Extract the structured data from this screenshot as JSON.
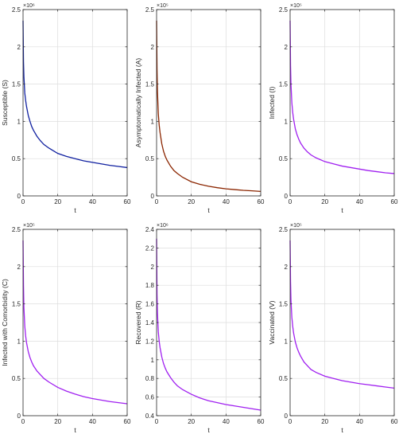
{
  "figure": {
    "colors": {
      "axis": "#262626",
      "grid": "#dedede",
      "background": "#ffffff"
    }
  },
  "chart_data": [
    {
      "type": "line",
      "xlabel": "t",
      "ylabel": "Susceptible (S)",
      "xlim": [
        0,
        60
      ],
      "ylim": [
        0,
        2.5
      ],
      "xticks": [
        "0",
        "20",
        "40",
        "60"
      ],
      "yticks": [
        "0",
        "0.5",
        "1",
        "1.5",
        "2",
        "2.5"
      ],
      "y_multiplier": "×10⁶",
      "grid": true,
      "series": [
        {
          "color": "#1020a0",
          "x": [
            0,
            0.25,
            0.5,
            1,
            1.5,
            2,
            3,
            4,
            5,
            6,
            8,
            10,
            12,
            15,
            20,
            25,
            30,
            35,
            40,
            45,
            50,
            55,
            60
          ],
          "y": [
            2.35,
            1.8,
            1.6,
            1.38,
            1.28,
            1.2,
            1.08,
            1.0,
            0.93,
            0.88,
            0.8,
            0.74,
            0.69,
            0.64,
            0.57,
            0.53,
            0.5,
            0.47,
            0.45,
            0.43,
            0.41,
            0.395,
            0.38
          ]
        }
      ]
    },
    {
      "type": "line",
      "xlabel": "t",
      "ylabel": "Asymptomatically Infected (A)",
      "xlim": [
        0,
        60
      ],
      "ylim": [
        0,
        2.5
      ],
      "xticks": [
        "0",
        "20",
        "40",
        "60"
      ],
      "yticks": [
        "0",
        "0.5",
        "1",
        "1.5",
        "2",
        "2.5"
      ],
      "y_multiplier": "×10⁵",
      "grid": true,
      "series": [
        {
          "color": "#8b2500",
          "x": [
            0,
            0.25,
            0.5,
            1,
            1.5,
            2,
            3,
            4,
            5,
            6,
            8,
            10,
            12,
            15,
            20,
            25,
            30,
            35,
            40,
            45,
            50,
            55,
            60
          ],
          "y": [
            2.35,
            1.7,
            1.4,
            1.1,
            0.95,
            0.85,
            0.7,
            0.6,
            0.53,
            0.48,
            0.4,
            0.34,
            0.3,
            0.25,
            0.19,
            0.155,
            0.13,
            0.11,
            0.095,
            0.085,
            0.075,
            0.068,
            0.06
          ]
        }
      ]
    },
    {
      "type": "line",
      "xlabel": "t",
      "ylabel": "Infected (I)",
      "xlim": [
        0,
        60
      ],
      "ylim": [
        0,
        2.5
      ],
      "xticks": [
        "0",
        "20",
        "40",
        "60"
      ],
      "yticks": [
        "0",
        "0.5",
        "1",
        "1.5",
        "2",
        "2.5"
      ],
      "y_multiplier": "×10⁵",
      "grid": true,
      "series": [
        {
          "color": "#a020f0",
          "x": [
            0,
            0.25,
            0.5,
            1,
            1.5,
            2,
            3,
            4,
            5,
            6,
            8,
            10,
            12,
            15,
            20,
            25,
            30,
            35,
            40,
            45,
            50,
            55,
            60
          ],
          "y": [
            2.35,
            1.75,
            1.5,
            1.25,
            1.12,
            1.03,
            0.9,
            0.82,
            0.76,
            0.71,
            0.64,
            0.59,
            0.55,
            0.51,
            0.46,
            0.43,
            0.4,
            0.38,
            0.36,
            0.34,
            0.325,
            0.31,
            0.3
          ]
        }
      ]
    },
    {
      "type": "line",
      "xlabel": "t",
      "ylabel": "Infected with Comorbidity (C)",
      "xlim": [
        0,
        60
      ],
      "ylim": [
        0,
        2.5
      ],
      "xticks": [
        "0",
        "20",
        "40",
        "60"
      ],
      "yticks": [
        "0",
        "0.5",
        "1",
        "1.5",
        "2",
        "2.5"
      ],
      "y_multiplier": "×10⁵",
      "grid": true,
      "series": [
        {
          "color": "#a020f0",
          "x": [
            0,
            0.25,
            0.5,
            1,
            1.5,
            2,
            3,
            4,
            5,
            6,
            8,
            10,
            12,
            15,
            20,
            25,
            30,
            35,
            40,
            45,
            50,
            55,
            60
          ],
          "y": [
            2.35,
            1.75,
            1.45,
            1.2,
            1.07,
            0.98,
            0.86,
            0.78,
            0.72,
            0.67,
            0.6,
            0.55,
            0.5,
            0.45,
            0.38,
            0.33,
            0.29,
            0.255,
            0.23,
            0.21,
            0.19,
            0.175,
            0.16
          ]
        }
      ]
    },
    {
      "type": "line",
      "xlabel": "t",
      "ylabel": "Recovered (R)",
      "xlim": [
        0,
        60
      ],
      "ylim": [
        0.4,
        2.4
      ],
      "xticks": [
        "0",
        "20",
        "40",
        "60"
      ],
      "yticks": [
        "0.4",
        "0.6",
        "0.8",
        "1",
        "1.2",
        "1.4",
        "1.6",
        "1.8",
        "2",
        "2.2",
        "2.4"
      ],
      "y_multiplier": "×10⁶",
      "grid": true,
      "series": [
        {
          "color": "#a020f0",
          "x": [
            0,
            0.25,
            0.5,
            1,
            1.5,
            2,
            3,
            4,
            5,
            6,
            8,
            10,
            12,
            15,
            20,
            25,
            30,
            35,
            40,
            45,
            50,
            55,
            60
          ],
          "y": [
            2.3,
            1.7,
            1.5,
            1.3,
            1.2,
            1.13,
            1.03,
            0.96,
            0.91,
            0.87,
            0.81,
            0.76,
            0.72,
            0.68,
            0.63,
            0.59,
            0.56,
            0.54,
            0.52,
            0.505,
            0.49,
            0.475,
            0.46
          ]
        }
      ]
    },
    {
      "type": "line",
      "xlabel": "t",
      "ylabel": "Vaccinated (V)",
      "xlim": [
        0,
        60
      ],
      "ylim": [
        0,
        2.5
      ],
      "xticks": [
        "0",
        "20",
        "40",
        "60"
      ],
      "yticks": [
        "0",
        "0.5",
        "1",
        "1.5",
        "2",
        "2.5"
      ],
      "y_multiplier": "×10⁵",
      "grid": true,
      "series": [
        {
          "color": "#a020f0",
          "x": [
            0,
            0.25,
            0.5,
            1,
            1.5,
            2,
            3,
            4,
            5,
            6,
            8,
            10,
            12,
            15,
            20,
            25,
            30,
            35,
            40,
            45,
            50,
            55,
            60
          ],
          "y": [
            2.35,
            1.8,
            1.55,
            1.32,
            1.2,
            1.11,
            0.99,
            0.91,
            0.85,
            0.8,
            0.72,
            0.67,
            0.62,
            0.58,
            0.53,
            0.5,
            0.47,
            0.45,
            0.43,
            0.415,
            0.4,
            0.385,
            0.37
          ]
        }
      ]
    }
  ]
}
